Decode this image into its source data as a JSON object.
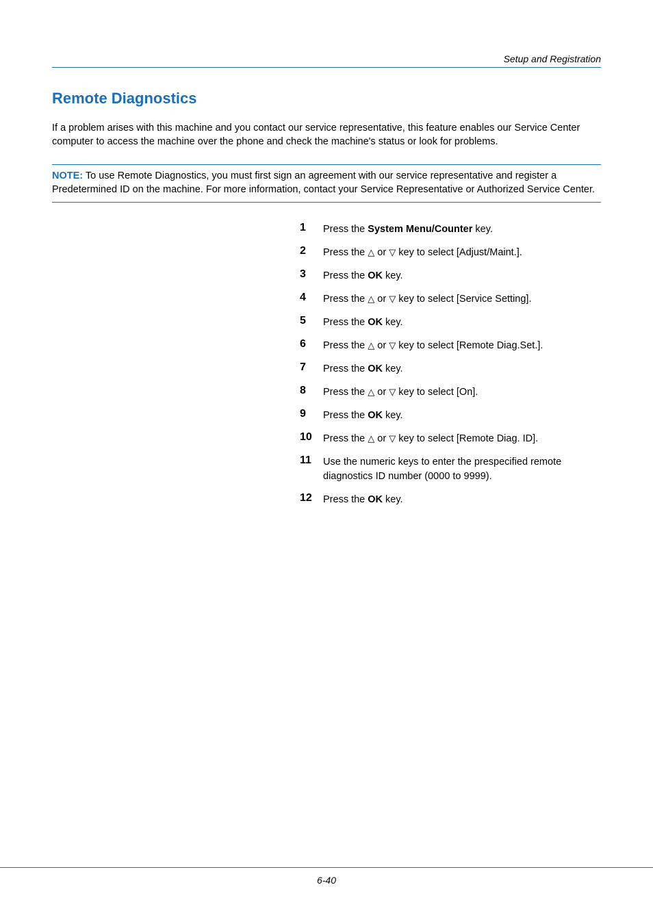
{
  "header": {
    "section": "Setup and Registration"
  },
  "title": "Remote Diagnostics",
  "intro": "If a problem arises with this machine and you contact our service representative, this feature enables our Service Center computer to access the machine over the phone and check the machine's status or look for problems.",
  "note": {
    "label": "NOTE:",
    "text": " To use Remote Diagnostics, you must first sign an agreement with our service representative and register a Predetermined ID on the machine. For more information, contact your Service Representative or Authorized Service Center."
  },
  "steps": [
    {
      "num": "1",
      "pre": "Press the ",
      "bold": "System Menu/Counter",
      "post": " key."
    },
    {
      "num": "2",
      "arrow_pre": "Press the ",
      "arrow_post": " key to select [Adjust/Maint.]."
    },
    {
      "num": "3",
      "pre": "Press the ",
      "bold": "OK",
      "post": " key."
    },
    {
      "num": "4",
      "arrow_pre": "Press the ",
      "arrow_post": " key to select [Service Setting]."
    },
    {
      "num": "5",
      "pre": "Press the ",
      "bold": "OK",
      "post": " key."
    },
    {
      "num": "6",
      "arrow_pre": "Press the ",
      "arrow_post": " key to select [Remote Diag.Set.]."
    },
    {
      "num": "7",
      "pre": "Press the ",
      "bold": "OK",
      "post": " key."
    },
    {
      "num": "8",
      "arrow_pre": "Press the ",
      "arrow_post": " key to select [On]."
    },
    {
      "num": "9",
      "pre": "Press the ",
      "bold": "OK",
      "post": " key."
    },
    {
      "num": "10",
      "arrow_pre": "Press the ",
      "arrow_post": " key to select [Remote Diag. ID]."
    },
    {
      "num": "11",
      "plain": "Use the numeric keys to enter the prespecified remote diagnostics ID number (0000 to 9999)."
    },
    {
      "num": "12",
      "pre": "Press the ",
      "bold": "OK",
      "post": " key."
    }
  ],
  "glyphs": {
    "up": "△",
    "or": " or ",
    "down": "▽"
  },
  "footer": {
    "page": "6-40"
  },
  "colors": {
    "blue": "#1a6fb7",
    "text": "#000000",
    "bg": "#ffffff"
  }
}
